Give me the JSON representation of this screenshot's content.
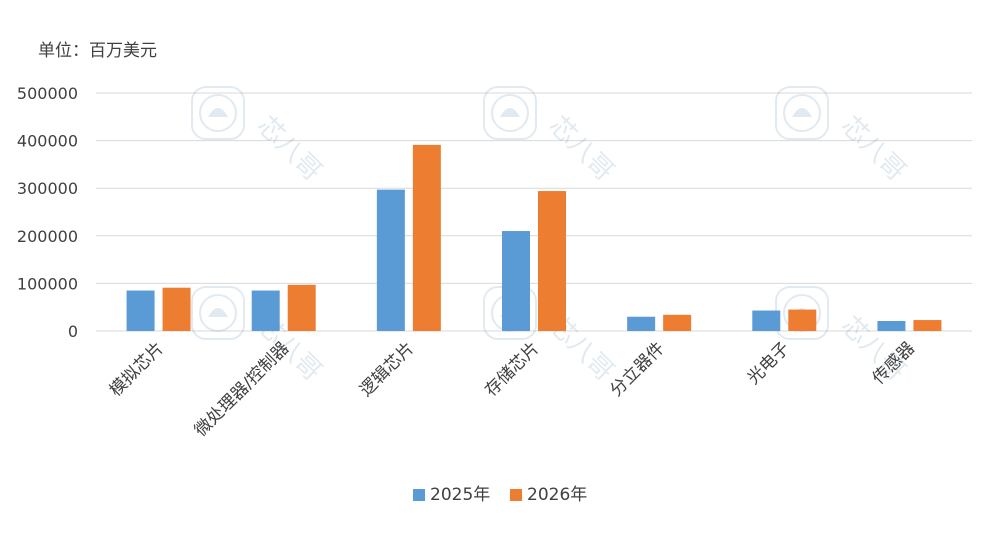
{
  "chart_data": {
    "type": "bar",
    "title": "",
    "unit_label": "单位：百万美元",
    "xlabel": "",
    "ylabel": "",
    "ylim": [
      0,
      500000
    ],
    "yticks": [
      0,
      100000,
      200000,
      300000,
      400000,
      500000
    ],
    "ytick_labels": [
      "0",
      "100000",
      "200000",
      "300000",
      "400000",
      "500000"
    ],
    "grid": true,
    "legend_position": "bottom",
    "categories": [
      "模拟芯片",
      "微处理器/控制器",
      "逻辑芯片",
      "存储芯片",
      "分立器件",
      "光电子",
      "传感器"
    ],
    "series": [
      {
        "name": "2025年",
        "color": "#5B9BD5",
        "values": [
          85000,
          85000,
          297000,
          210000,
          30000,
          43000,
          21000
        ]
      },
      {
        "name": "2026年",
        "color": "#ED7D31",
        "values": [
          91000,
          97000,
          391000,
          294000,
          34000,
          45000,
          23000
        ]
      }
    ],
    "watermark_text": "芯八哥"
  }
}
